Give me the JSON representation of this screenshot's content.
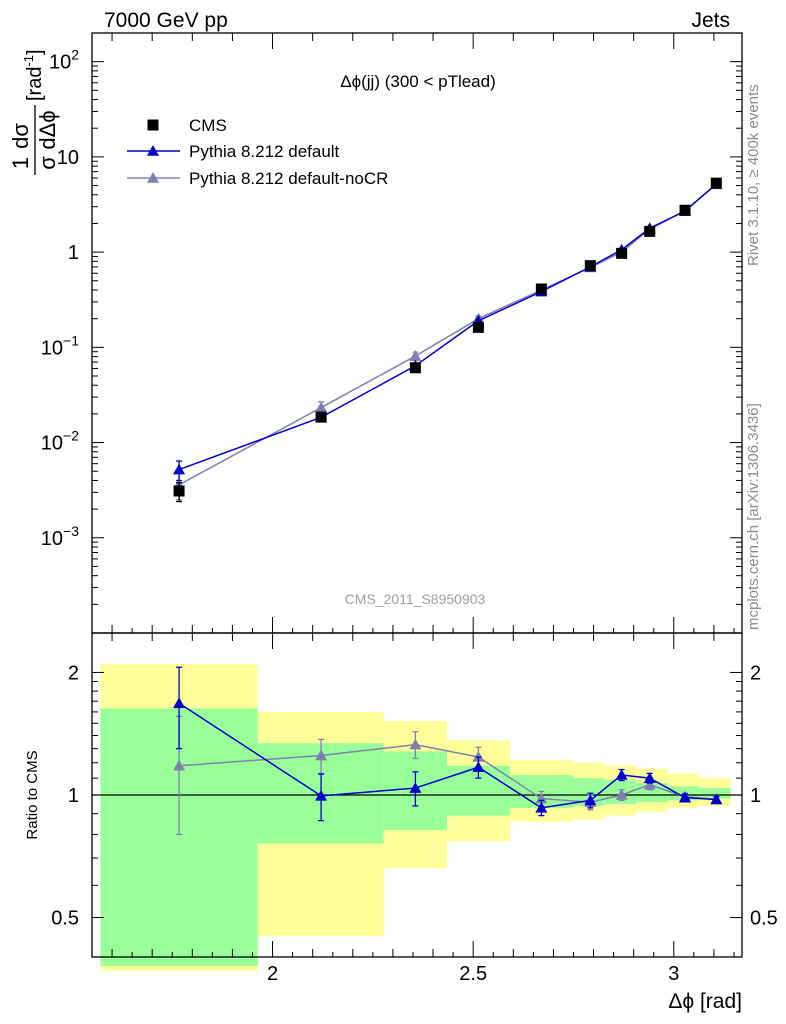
{
  "header": {
    "left": "7000 GeV pp",
    "right": "Jets"
  },
  "side_labels": {
    "rivet": "Rivet 3.1.10, ≥ 400k events",
    "mcplots": "mcplots.cern.ch [arXiv:1306.3436]"
  },
  "chart_data": [
    {
      "type": "scatter",
      "title": "Δϕ(jj) (300 < pTlead)",
      "watermark": "CMS_2011_S8950903",
      "ylabel_parts": [
        "1",
        "dσ",
        "σ",
        "dΔϕ",
        "[rad",
        "-1",
        "]"
      ],
      "y_scale": "log",
      "xlim": [
        1.55,
        3.17
      ],
      "ylim": [
        0.0001,
        200
      ],
      "grid": false,
      "legend_placement": "top-left",
      "y_ticks": [
        {
          "value": 0.001,
          "base": "10",
          "exp": "−3"
        },
        {
          "value": 0.01,
          "base": "10",
          "exp": "−2"
        },
        {
          "value": 0.1,
          "base": "10",
          "exp": "−1"
        },
        {
          "value": 1,
          "base": "1",
          "exp": ""
        },
        {
          "value": 10,
          "base": "10",
          "exp": ""
        },
        {
          "value": 100,
          "base": "10",
          "exp": "2"
        }
      ],
      "series": [
        {
          "name": "CMS",
          "marker": "square",
          "color": "#000000",
          "x": [
            1.767,
            2.121,
            2.356,
            2.513,
            2.67,
            2.792,
            2.87,
            2.94,
            3.028,
            3.106
          ],
          "y": [
            0.0031,
            0.0185,
            0.061,
            0.162,
            0.41,
            0.72,
            0.97,
            1.65,
            2.75,
            5.3
          ],
          "err": [
            0.0007,
            0.002,
            0.005,
            0.01,
            0.02,
            0.03,
            0.04,
            0.05,
            0.07,
            0.1
          ]
        },
        {
          "name": "Pythia 8.212 default",
          "marker": "triangle",
          "color": "#0000cc",
          "x": [
            1.767,
            2.121,
            2.356,
            2.513,
            2.67,
            2.792,
            2.87,
            2.94,
            3.028,
            3.106
          ],
          "y": [
            0.0052,
            0.0184,
            0.064,
            0.19,
            0.385,
            0.7,
            1.06,
            1.78,
            2.7,
            5.2
          ],
          "err": [
            0.0012,
            0.0015,
            0.004,
            0.008,
            0.015,
            0.02,
            0.03,
            0.04,
            0.05,
            0.08
          ]
        },
        {
          "name": "Pythia 8.212 default-noCR",
          "marker": "triangle",
          "color": "#8080b0",
          "x": [
            1.767,
            2.121,
            2.356,
            2.513,
            2.67,
            2.792,
            2.87,
            2.94,
            3.028,
            3.106
          ],
          "y": [
            0.0036,
            0.0233,
            0.081,
            0.2,
            0.4,
            0.69,
            1.0,
            1.74,
            2.72,
            5.15
          ],
          "err": [
            0.0011,
            0.0035,
            0.008,
            0.012,
            0.02,
            0.025,
            0.03,
            0.04,
            0.05,
            0.08
          ]
        }
      ]
    },
    {
      "type": "scatter",
      "ylabel": "Ratio to CMS",
      "xlabel": "Δϕ [rad]",
      "y_scale": "log",
      "xlim": [
        1.55,
        3.17
      ],
      "ylim": [
        0.4,
        2.5
      ],
      "x_ticks": [
        {
          "value": 2,
          "label": "2"
        },
        {
          "value": 2.5,
          "label": "2.5"
        },
        {
          "value": 3,
          "label": "3"
        }
      ],
      "y_ticks": [
        {
          "value": 0.5,
          "label": "0.5"
        },
        {
          "value": 1,
          "label": "1"
        },
        {
          "value": 2,
          "label": "2"
        }
      ],
      "reference_line": 1,
      "bands": [
        {
          "x0": 1.571,
          "x1": 1.963,
          "yellow": [
            0.37,
            2.1
          ],
          "green": [
            0.38,
            1.63
          ]
        },
        {
          "x0": 1.963,
          "x1": 2.277,
          "yellow": [
            0.45,
            1.6
          ],
          "green": [
            0.76,
            1.34
          ]
        },
        {
          "x0": 2.277,
          "x1": 2.435,
          "yellow": [
            0.66,
            1.52
          ],
          "green": [
            0.82,
            1.28
          ]
        },
        {
          "x0": 2.435,
          "x1": 2.592,
          "yellow": [
            0.77,
            1.36
          ],
          "green": [
            0.89,
            1.18
          ]
        },
        {
          "x0": 2.592,
          "x1": 2.749,
          "yellow": [
            0.86,
            1.22
          ],
          "green": [
            0.93,
            1.12
          ]
        },
        {
          "x0": 2.749,
          "x1": 2.827,
          "yellow": [
            0.87,
            1.2
          ],
          "green": [
            0.94,
            1.1
          ]
        },
        {
          "x0": 2.827,
          "x1": 2.906,
          "yellow": [
            0.89,
            1.18
          ],
          "green": [
            0.95,
            1.09
          ]
        },
        {
          "x0": 2.906,
          "x1": 2.985,
          "yellow": [
            0.91,
            1.16
          ],
          "green": [
            0.96,
            1.07
          ]
        },
        {
          "x0": 2.985,
          "x1": 3.063,
          "yellow": [
            0.93,
            1.13
          ],
          "green": [
            0.97,
            1.05
          ]
        },
        {
          "x0": 3.063,
          "x1": 3.142,
          "yellow": [
            0.94,
            1.1
          ],
          "green": [
            0.98,
            1.04
          ]
        }
      ],
      "series": [
        {
          "name": "Pythia 8.212 default",
          "color": "#0000cc",
          "x": [
            1.767,
            2.121,
            2.356,
            2.513,
            2.67,
            2.792,
            2.87,
            2.94,
            3.028,
            3.106
          ],
          "y": [
            1.68,
            0.995,
            1.04,
            1.17,
            0.93,
            0.97,
            1.12,
            1.1,
            0.985,
            0.975
          ],
          "err": [
            0.38,
            0.13,
            0.1,
            0.07,
            0.04,
            0.04,
            0.035,
            0.03,
            0.02,
            0.015
          ]
        },
        {
          "name": "Pythia 8.212 default-noCR",
          "color": "#8080b0",
          "x": [
            1.767,
            2.121,
            2.356,
            2.513,
            2.67,
            2.792,
            2.87,
            2.94,
            3.028,
            3.106
          ],
          "y": [
            1.18,
            1.25,
            1.33,
            1.24,
            0.98,
            0.96,
            1.0,
            1.06,
            0.99,
            0.975
          ],
          "err": [
            0.38,
            0.12,
            0.1,
            0.07,
            0.04,
            0.04,
            0.03,
            0.03,
            0.02,
            0.015
          ]
        }
      ]
    }
  ]
}
